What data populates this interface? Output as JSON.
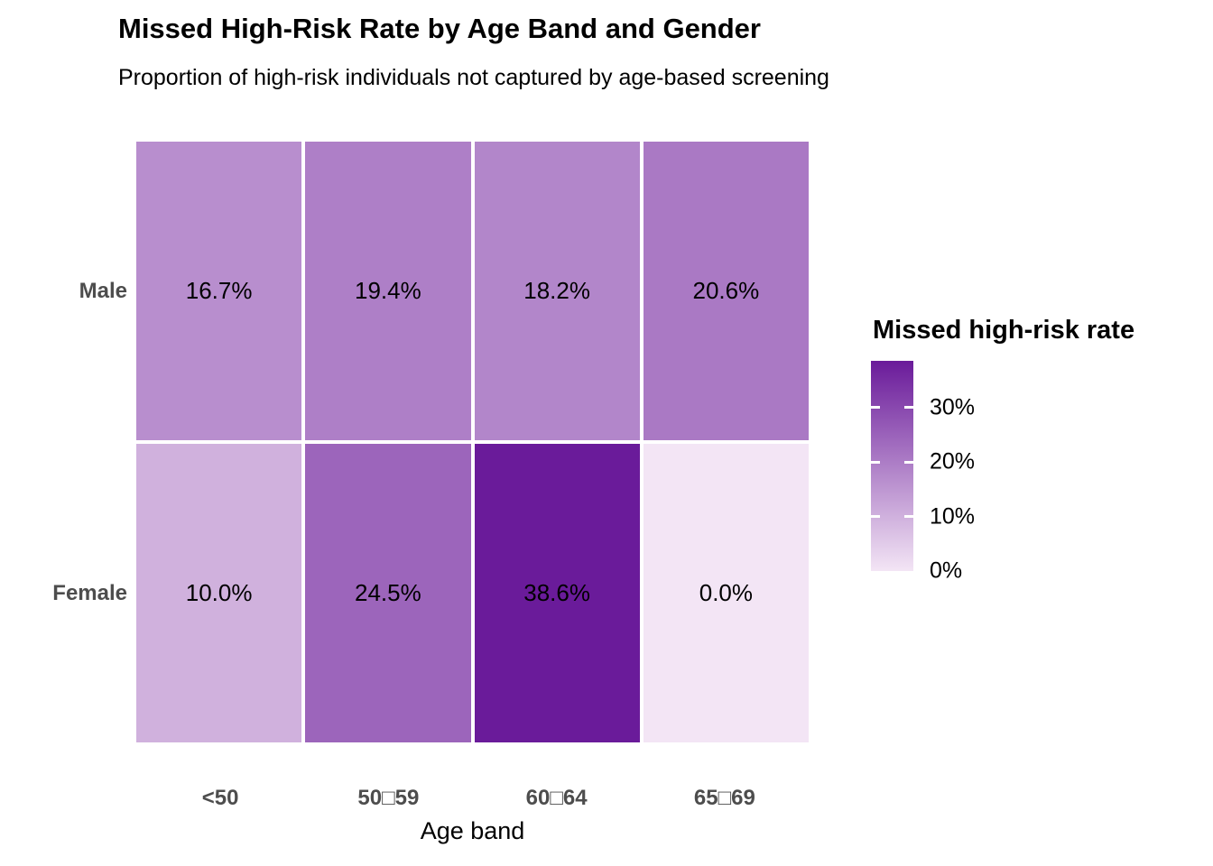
{
  "header": {
    "title": "Missed High-Risk Rate by Age Band and Gender",
    "subtitle": "Proportion of high-risk individuals not captured by age-based screening"
  },
  "chart_data": {
    "type": "heatmap",
    "title": "Missed High-Risk Rate by Age Band and Gender",
    "subtitle": "Proportion of high-risk individuals not captured by age-based screening",
    "xlabel": "Age band",
    "ylabel": "",
    "x_categories": [
      "<50",
      "50□59",
      "60□64",
      "65□69"
    ],
    "y_categories": [
      "Male",
      "Female"
    ],
    "values_pct": [
      [
        16.7,
        19.4,
        18.2,
        20.6
      ],
      [
        10.0,
        24.5,
        38.6,
        0.0
      ]
    ],
    "cell_labels": [
      [
        "16.7%",
        "19.4%",
        "18.2%",
        "20.6%"
      ],
      [
        "10.0%",
        "24.5%",
        "38.6%",
        "0.0%"
      ]
    ],
    "cell_colors": [
      [
        "#B88ECE",
        "#AE7FC7",
        "#B286CA",
        "#AA79C4"
      ],
      [
        "#D0B1DD",
        "#9C65BB",
        "#6A1B9A",
        "#F3E5F5"
      ]
    ],
    "grid": "off",
    "legend": {
      "title": "Missed high-risk rate",
      "position": "right",
      "orientation": "vertical-gradient-bar",
      "tick_labels": [
        "30%",
        "20%",
        "10%",
        "0%"
      ],
      "tick_values": [
        30,
        20,
        10,
        0
      ],
      "scale_min_pct": 0,
      "scale_max_pct": 38.6,
      "gradient_low_color": "#F3E5F5",
      "gradient_high_color": "#6A1B9A"
    },
    "colors": {
      "axis_text": "#4D4D4D",
      "title_text": "#000000",
      "cell_label_text": "#000000",
      "background": "#FFFFFF",
      "tile_border": "#FFFFFF"
    }
  }
}
